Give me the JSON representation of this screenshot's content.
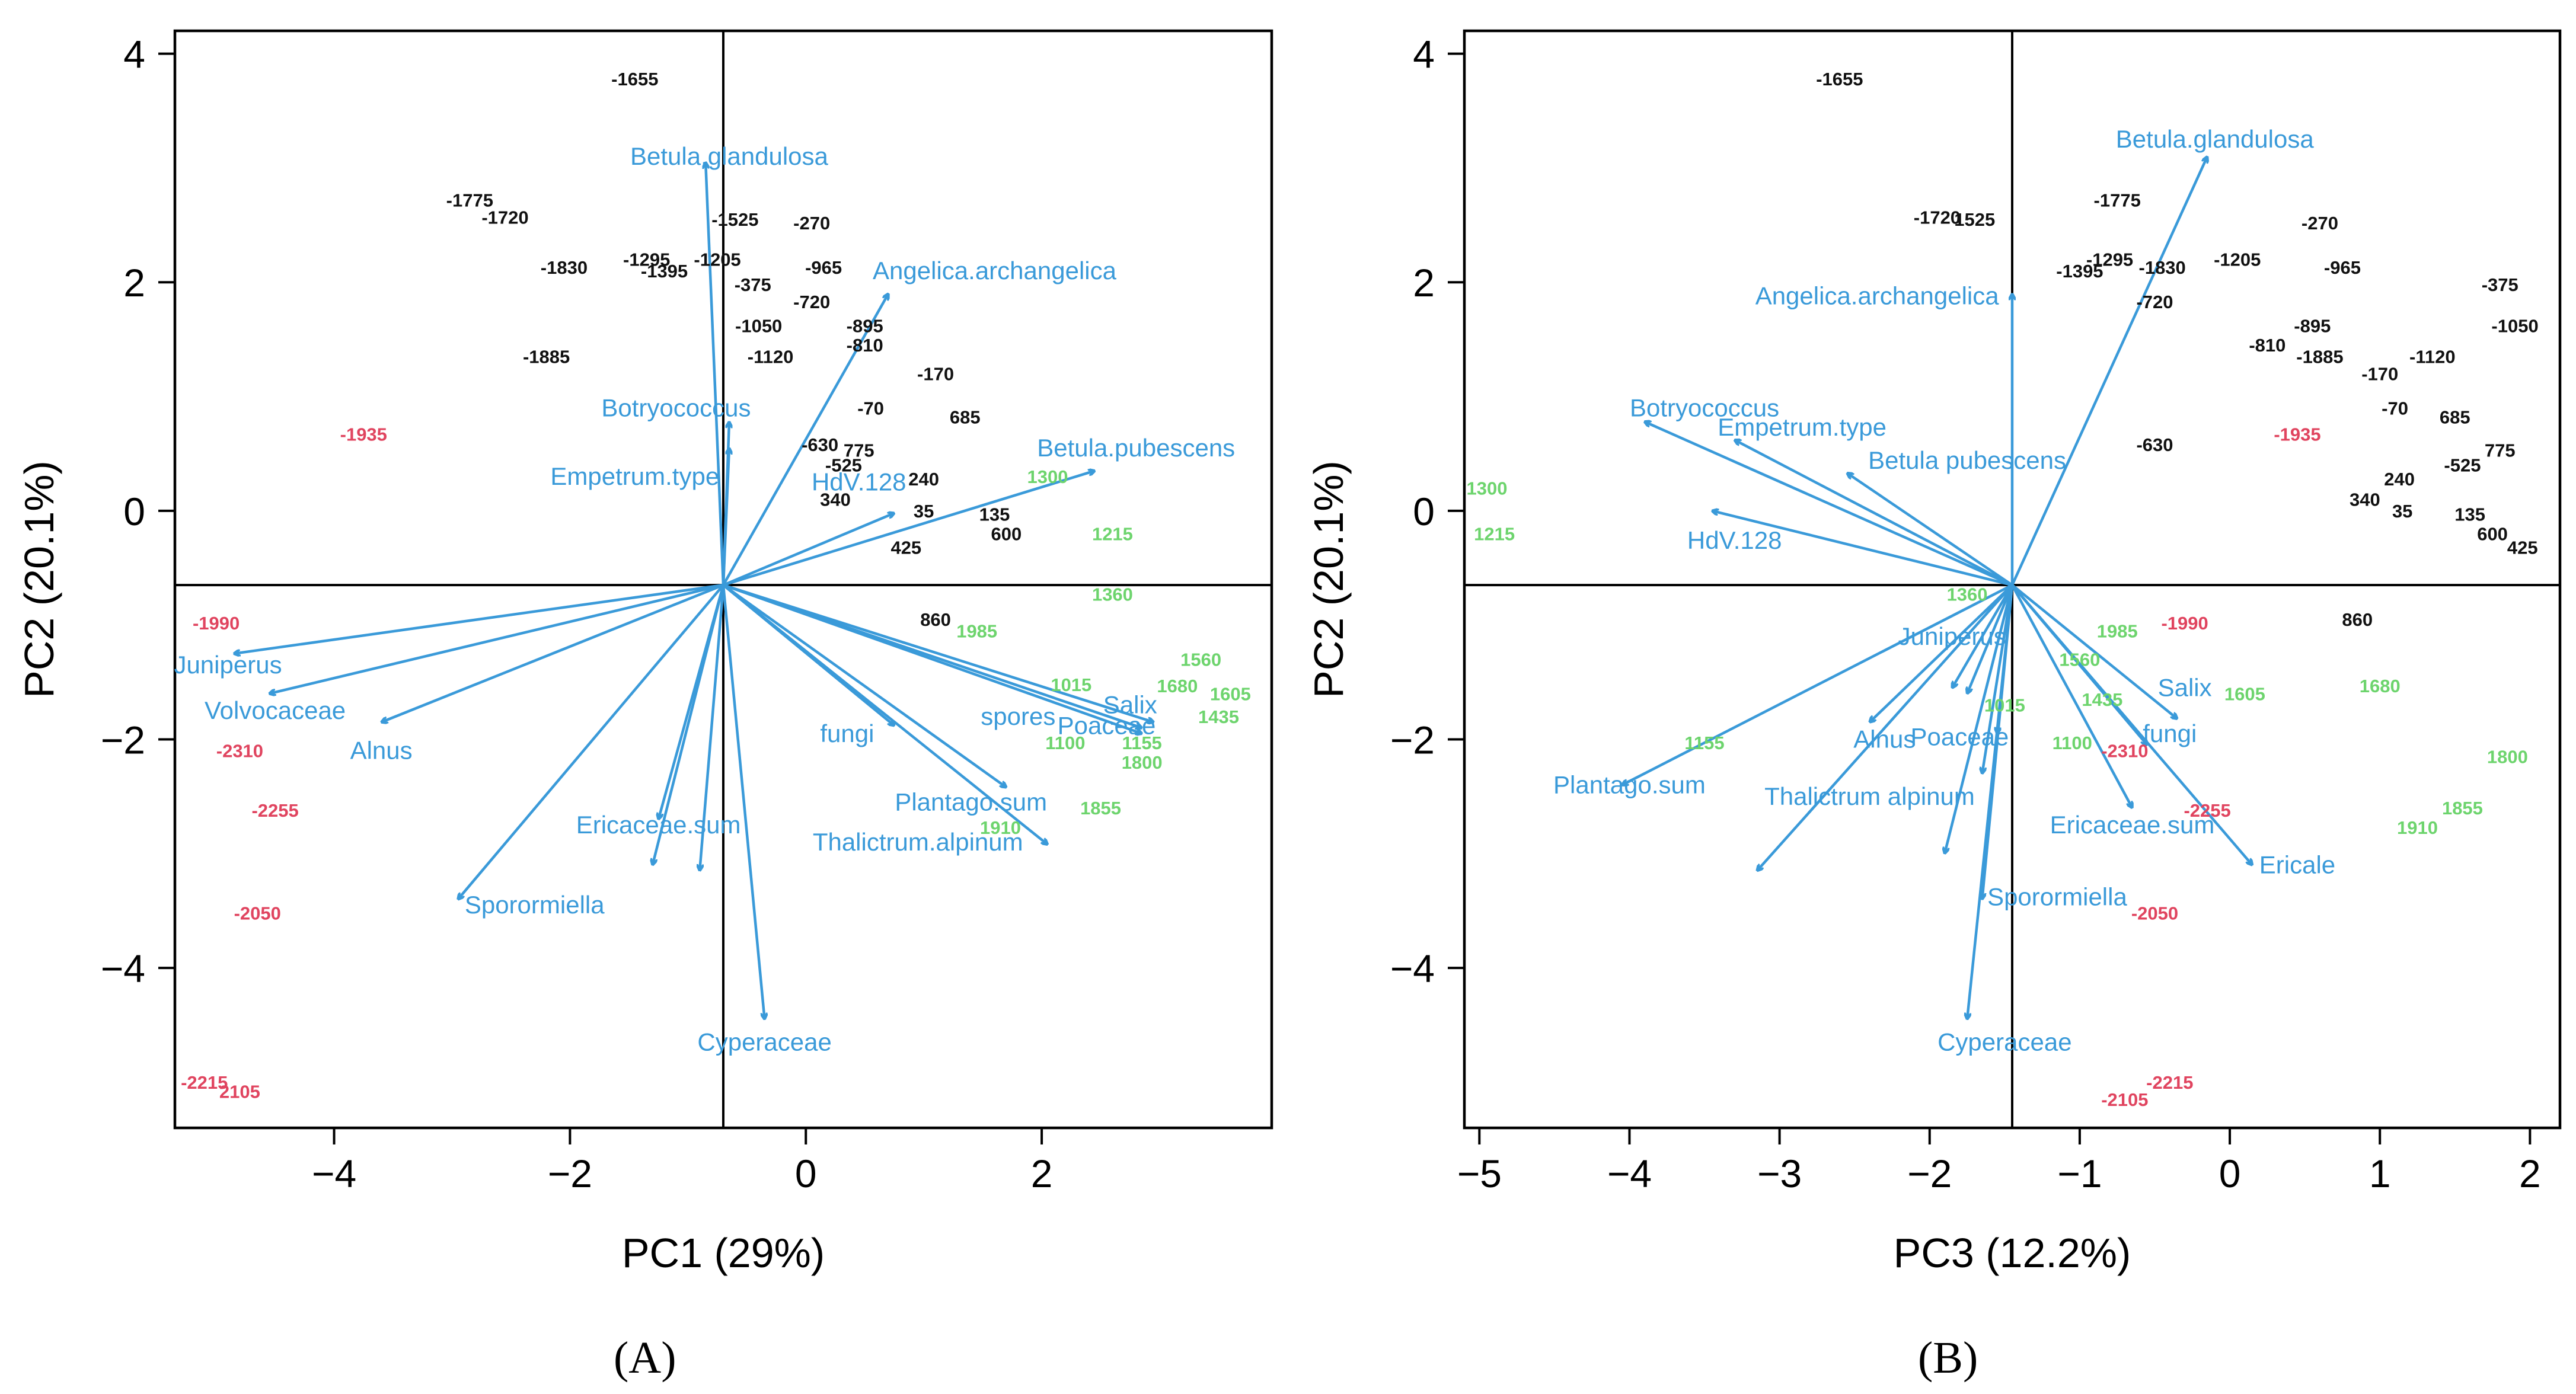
{
  "colors": {
    "arrow": "#3a9ad9",
    "late": "#111111",
    "early": "#e0445f",
    "mid": "#6dd46d",
    "axis": "#000000"
  },
  "panel_labels": [
    "(A)",
    "(B)"
  ],
  "chart_data": [
    {
      "type": "scatter",
      "subtype": "pca-biplot",
      "xlabel": "PC1 (29%)",
      "ylabel": "PC2 (20.1%)",
      "xlim": [
        -5.35,
        3.95
      ],
      "ylim": [
        -5.4,
        4.2
      ],
      "xticks": [
        -4,
        -2,
        0,
        2
      ],
      "yticks": [
        -4,
        -2,
        0,
        2,
        4
      ],
      "origin": [
        -0.7,
        -0.65
      ],
      "vectors": [
        {
          "name": "Betula.glandulosa",
          "x": -0.85,
          "y": 3.05,
          "lx": -0.65,
          "ly": 3.1
        },
        {
          "name": "Angelica.archangelica",
          "x": 0.7,
          "y": 1.9,
          "lx": 1.6,
          "ly": 2.1
        },
        {
          "name": "Botryococcus",
          "x": -0.65,
          "y": 0.78,
          "lx": -1.1,
          "ly": 0.9
        },
        {
          "name": "Empetrum.type",
          "x": -0.65,
          "y": 0.55,
          "lx": -1.45,
          "ly": 0.3
        },
        {
          "name": "HdV.128",
          "x": 0.75,
          "y": -0.02,
          "lx": 0.45,
          "ly": 0.25
        },
        {
          "name": "Betula.pubescens",
          "x": 2.45,
          "y": 0.35,
          "lx": 2.8,
          "ly": 0.55
        },
        {
          "name": "Juniperus",
          "x": -4.85,
          "y": -1.25,
          "lx": -4.9,
          "ly": -1.35
        },
        {
          "name": "Volvocaceae",
          "x": -4.55,
          "y": -1.6,
          "lx": -4.5,
          "ly": -1.75
        },
        {
          "name": "Alnus",
          "x": -3.6,
          "y": -1.85,
          "lx": -3.6,
          "ly": -2.1
        },
        {
          "name": "Sporormiella",
          "x": -2.95,
          "y": -3.4,
          "lx": -2.3,
          "ly": -3.45
        },
        {
          "name": "Ericaceae.sum",
          "x": -1.25,
          "y": -2.7,
          "lx": -1.25,
          "ly": -2.75
        },
        {
          "name": "Cyperaceae",
          "x": -0.35,
          "y": -4.45,
          "lx": -0.35,
          "ly": -4.65
        },
        {
          "name": "fungi",
          "x": 0.75,
          "y": -1.88,
          "lx": 0.35,
          "ly": -1.95
        },
        {
          "name": "spores",
          "x": 2.85,
          "y": -1.9,
          "lx": 1.8,
          "ly": -1.8
        },
        {
          "name": "Salix",
          "x": 2.95,
          "y": -1.85,
          "lx": 2.75,
          "ly": -1.7
        },
        {
          "name": "Poaceae",
          "x": 2.85,
          "y": -1.95,
          "lx": 2.55,
          "ly": -1.88
        },
        {
          "name": "Plantago.sum",
          "x": 1.7,
          "y": -2.42,
          "lx": 1.4,
          "ly": -2.55
        },
        {
          "name": "Thalictrum.alpinum",
          "x": 2.05,
          "y": -2.92,
          "lx": 0.95,
          "ly": -2.9
        },
        {
          "name": "",
          "x": -0.9,
          "y": -3.15
        },
        {
          "name": "",
          "x": -1.3,
          "y": -3.1
        }
      ],
      "samples": [
        {
          "label": "-1655",
          "x": -1.45,
          "y": 3.78,
          "g": "late"
        },
        {
          "label": "-1775",
          "x": -2.85,
          "y": 2.72,
          "g": "late"
        },
        {
          "label": "-1720",
          "x": -2.55,
          "y": 2.57,
          "g": "late"
        },
        {
          "label": "-1525",
          "x": -0.6,
          "y": 2.55,
          "g": "late"
        },
        {
          "label": "-270",
          "x": 0.05,
          "y": 2.52,
          "g": "late"
        },
        {
          "label": "-1295",
          "x": -1.35,
          "y": 2.2,
          "g": "late"
        },
        {
          "label": "-1205",
          "x": -0.75,
          "y": 2.2,
          "g": "late"
        },
        {
          "label": "-1395",
          "x": -1.2,
          "y": 2.1,
          "g": "late"
        },
        {
          "label": "-1830",
          "x": -2.05,
          "y": 2.13,
          "g": "late"
        },
        {
          "label": "-965",
          "x": 0.15,
          "y": 2.13,
          "g": "late"
        },
        {
          "label": "-375",
          "x": -0.45,
          "y": 1.98,
          "g": "late"
        },
        {
          "label": "-720",
          "x": 0.05,
          "y": 1.83,
          "g": "late"
        },
        {
          "label": "-1050",
          "x": -0.4,
          "y": 1.62,
          "g": "late"
        },
        {
          "label": "-895",
          "x": 0.5,
          "y": 1.62,
          "g": "late"
        },
        {
          "label": "-810",
          "x": 0.5,
          "y": 1.45,
          "g": "late"
        },
        {
          "label": "-1885",
          "x": -2.2,
          "y": 1.35,
          "g": "late"
        },
        {
          "label": "-1120",
          "x": -0.3,
          "y": 1.35,
          "g": "late"
        },
        {
          "label": "-170",
          "x": 1.1,
          "y": 1.2,
          "g": "late"
        },
        {
          "label": "-70",
          "x": 0.55,
          "y": 0.9,
          "g": "late"
        },
        {
          "label": "685",
          "x": 1.35,
          "y": 0.82,
          "g": "late"
        },
        {
          "label": "-630",
          "x": 0.12,
          "y": 0.58,
          "g": "late"
        },
        {
          "label": "775",
          "x": 0.45,
          "y": 0.53,
          "g": "late"
        },
        {
          "label": "-525",
          "x": 0.32,
          "y": 0.4,
          "g": "late"
        },
        {
          "label": "240",
          "x": 1.0,
          "y": 0.28,
          "g": "late"
        },
        {
          "label": "340",
          "x": 0.25,
          "y": 0.1,
          "g": "late"
        },
        {
          "label": "35",
          "x": 1.0,
          "y": 0.0,
          "g": "late"
        },
        {
          "label": "135",
          "x": 1.6,
          "y": -0.03,
          "g": "late"
        },
        {
          "label": "600",
          "x": 1.7,
          "y": -0.2,
          "g": "late"
        },
        {
          "label": "425",
          "x": 0.85,
          "y": -0.32,
          "g": "late"
        },
        {
          "label": "860",
          "x": 1.1,
          "y": -0.95,
          "g": "late"
        },
        {
          "label": "-1935",
          "x": -3.75,
          "y": 0.67,
          "g": "early"
        },
        {
          "label": "-1990",
          "x": -5.0,
          "y": -0.98,
          "g": "early"
        },
        {
          "label": "-2310",
          "x": -4.8,
          "y": -2.1,
          "g": "early"
        },
        {
          "label": "-2255",
          "x": -4.5,
          "y": -2.62,
          "g": "early"
        },
        {
          "label": "-2050",
          "x": -4.65,
          "y": -3.52,
          "g": "early"
        },
        {
          "label": "-2215",
          "x": -5.1,
          "y": -5.0,
          "g": "early"
        },
        {
          "label": "2105",
          "x": -4.8,
          "y": -5.08,
          "g": "early"
        },
        {
          "label": "1300",
          "x": 2.05,
          "y": 0.3,
          "g": "mid"
        },
        {
          "label": "1215",
          "x": 2.6,
          "y": -0.2,
          "g": "mid"
        },
        {
          "label": "1360",
          "x": 2.6,
          "y": -0.73,
          "g": "mid"
        },
        {
          "label": "1985",
          "x": 1.45,
          "y": -1.05,
          "g": "mid"
        },
        {
          "label": "1560",
          "x": 3.35,
          "y": -1.3,
          "g": "mid"
        },
        {
          "label": "1015",
          "x": 2.25,
          "y": -1.52,
          "g": "mid"
        },
        {
          "label": "1680",
          "x": 3.15,
          "y": -1.53,
          "g": "mid"
        },
        {
          "label": "1605",
          "x": 3.6,
          "y": -1.6,
          "g": "mid"
        },
        {
          "label": "1435",
          "x": 3.5,
          "y": -1.8,
          "g": "mid"
        },
        {
          "label": "1100",
          "x": 2.2,
          "y": -2.03,
          "g": "mid"
        },
        {
          "label": "1155",
          "x": 2.85,
          "y": -2.03,
          "g": "mid"
        },
        {
          "label": "1800",
          "x": 2.85,
          "y": -2.2,
          "g": "mid"
        },
        {
          "label": "1855",
          "x": 2.5,
          "y": -2.6,
          "g": "mid"
        },
        {
          "label": "1910",
          "x": 1.65,
          "y": -2.77,
          "g": "mid"
        }
      ]
    },
    {
      "type": "scatter",
      "subtype": "pca-biplot",
      "xlabel": "PC3 (12.2%)",
      "ylabel": "PC2 (20.1%)",
      "xlim": [
        -5.1,
        2.2
      ],
      "ylim": [
        -5.4,
        4.2
      ],
      "xticks": [
        -5,
        -4,
        -3,
        -2,
        -1,
        0,
        1,
        2
      ],
      "yticks": [
        -4,
        -2,
        0,
        2,
        4
      ],
      "origin": [
        -1.45,
        -0.65
      ],
      "vectors": [
        {
          "name": "Betula.glandulosa",
          "x": -0.15,
          "y": 3.1,
          "lx": -0.1,
          "ly": 3.25
        },
        {
          "name": "Angelica.archangelica",
          "x": -1.45,
          "y": 1.9,
          "lx": -2.35,
          "ly": 1.88
        },
        {
          "name": "Botryococcus",
          "x": -3.9,
          "y": 0.78,
          "lx": -3.5,
          "ly": 0.9
        },
        {
          "name": "Empetrum.type",
          "x": -3.3,
          "y": 0.62,
          "lx": -2.85,
          "ly": 0.73
        },
        {
          "name": "Betula pubescens",
          "x": -2.55,
          "y": 0.33,
          "lx": -1.75,
          "ly": 0.44
        },
        {
          "name": "HdV.128",
          "x": -3.45,
          "y": 0.0,
          "lx": -3.3,
          "ly": -0.26
        },
        {
          "name": "Juniperus",
          "x": -1.75,
          "y": -1.6,
          "lx": -1.85,
          "ly": -1.1
        },
        {
          "name": "Alnus",
          "x": -2.4,
          "y": -1.85,
          "lx": -2.3,
          "ly": -2.0
        },
        {
          "name": "Poaceae",
          "x": -1.55,
          "y": -1.95,
          "lx": -1.8,
          "ly": -1.98
        },
        {
          "name": "Plantago.sum",
          "x": -4.05,
          "y": -2.4,
          "lx": -4.0,
          "ly": -2.4
        },
        {
          "name": "Thalictrum alpinum",
          "x": -3.15,
          "y": -3.15,
          "lx": -2.4,
          "ly": -2.5
        },
        {
          "name": "Sporormiella",
          "x": -1.65,
          "y": -3.4,
          "lx": -1.15,
          "ly": -3.38
        },
        {
          "name": "Cyperaceae",
          "x": -1.75,
          "y": -4.45,
          "lx": -1.5,
          "ly": -4.65
        },
        {
          "name": "Salix",
          "x": -0.35,
          "y": -1.82,
          "lx": -0.3,
          "ly": -1.55
        },
        {
          "name": "fungi",
          "x": -0.55,
          "y": -2.05,
          "lx": -0.4,
          "ly": -1.95
        },
        {
          "name": "Ericaceae.sum",
          "x": -0.65,
          "y": -2.6,
          "lx": -0.65,
          "ly": -2.75
        },
        {
          "name": "Ericale",
          "x": 0.15,
          "y": -3.1,
          "lx": 0.45,
          "ly": -3.1
        },
        {
          "name": "",
          "x": -1.9,
          "y": -3.0
        },
        {
          "name": "",
          "x": -1.65,
          "y": -2.3
        },
        {
          "name": "",
          "x": -1.85,
          "y": -1.55
        }
      ],
      "samples": [
        {
          "label": "-1655",
          "x": -2.6,
          "y": 3.78,
          "g": "late"
        },
        {
          "label": "-1720",
          "x": -1.95,
          "y": 2.57,
          "g": "late"
        },
        {
          "label": "1525",
          "x": -1.7,
          "y": 2.55,
          "g": "late"
        },
        {
          "label": "-1775",
          "x": -0.75,
          "y": 2.72,
          "g": "late"
        },
        {
          "label": "-270",
          "x": 0.6,
          "y": 2.52,
          "g": "late"
        },
        {
          "label": "-1295",
          "x": -0.8,
          "y": 2.2,
          "g": "late"
        },
        {
          "label": "-1395",
          "x": -1.0,
          "y": 2.1,
          "g": "late"
        },
        {
          "label": "-1830",
          "x": -0.45,
          "y": 2.13,
          "g": "late"
        },
        {
          "label": "-1205",
          "x": 0.05,
          "y": 2.2,
          "g": "late"
        },
        {
          "label": "-965",
          "x": 0.75,
          "y": 2.13,
          "g": "late"
        },
        {
          "label": "-720",
          "x": -0.5,
          "y": 1.83,
          "g": "late"
        },
        {
          "label": "-375",
          "x": 1.8,
          "y": 1.98,
          "g": "late"
        },
        {
          "label": "-1050",
          "x": 1.9,
          "y": 1.62,
          "g": "late"
        },
        {
          "label": "-895",
          "x": 0.55,
          "y": 1.62,
          "g": "late"
        },
        {
          "label": "-810",
          "x": 0.25,
          "y": 1.45,
          "g": "late"
        },
        {
          "label": "-1885",
          "x": 0.6,
          "y": 1.35,
          "g": "late"
        },
        {
          "label": "-1120",
          "x": 1.35,
          "y": 1.35,
          "g": "late"
        },
        {
          "label": "-170",
          "x": 1.0,
          "y": 1.2,
          "g": "late"
        },
        {
          "label": "-70",
          "x": 1.1,
          "y": 0.9,
          "g": "late"
        },
        {
          "label": "685",
          "x": 1.5,
          "y": 0.82,
          "g": "late"
        },
        {
          "label": "-630",
          "x": -0.5,
          "y": 0.58,
          "g": "late"
        },
        {
          "label": "775",
          "x": 1.8,
          "y": 0.53,
          "g": "late"
        },
        {
          "label": "-525",
          "x": 1.55,
          "y": 0.4,
          "g": "late"
        },
        {
          "label": "240",
          "x": 1.13,
          "y": 0.28,
          "g": "late"
        },
        {
          "label": "340",
          "x": 0.9,
          "y": 0.1,
          "g": "late"
        },
        {
          "label": "35",
          "x": 1.15,
          "y": 0.0,
          "g": "late"
        },
        {
          "label": "135",
          "x": 1.6,
          "y": -0.03,
          "g": "late"
        },
        {
          "label": "600",
          "x": 1.75,
          "y": -0.2,
          "g": "late"
        },
        {
          "label": "425",
          "x": 1.95,
          "y": -0.32,
          "g": "late"
        },
        {
          "label": "860",
          "x": 0.85,
          "y": -0.95,
          "g": "late"
        },
        {
          "label": "-1935",
          "x": 0.45,
          "y": 0.67,
          "g": "early"
        },
        {
          "label": "-1990",
          "x": -0.3,
          "y": -0.98,
          "g": "early"
        },
        {
          "label": "-2310",
          "x": -0.7,
          "y": -2.1,
          "g": "early"
        },
        {
          "label": "-2255",
          "x": -0.15,
          "y": -2.62,
          "g": "early"
        },
        {
          "label": "-2050",
          "x": -0.5,
          "y": -3.52,
          "g": "early"
        },
        {
          "label": "-2215",
          "x": -0.4,
          "y": -5.0,
          "g": "early"
        },
        {
          "label": "-2105",
          "x": -0.7,
          "y": -5.15,
          "g": "early"
        },
        {
          "label": "1300",
          "x": -4.95,
          "y": 0.2,
          "g": "mid"
        },
        {
          "label": "1215",
          "x": -4.9,
          "y": -0.2,
          "g": "mid"
        },
        {
          "label": "1360",
          "x": -1.75,
          "y": -0.73,
          "g": "mid"
        },
        {
          "label": "1985",
          "x": -0.75,
          "y": -1.05,
          "g": "mid"
        },
        {
          "label": "1560",
          "x": -1.0,
          "y": -1.3,
          "g": "mid"
        },
        {
          "label": "1435",
          "x": -0.85,
          "y": -1.65,
          "g": "mid"
        },
        {
          "label": "1015",
          "x": -1.5,
          "y": -1.7,
          "g": "mid"
        },
        {
          "label": "1605",
          "x": 0.1,
          "y": -1.6,
          "g": "mid"
        },
        {
          "label": "1680",
          "x": 1.0,
          "y": -1.53,
          "g": "mid"
        },
        {
          "label": "1155",
          "x": -3.5,
          "y": -2.03,
          "g": "mid"
        },
        {
          "label": "1100",
          "x": -1.05,
          "y": -2.03,
          "g": "mid"
        },
        {
          "label": "1800",
          "x": 1.85,
          "y": -2.15,
          "g": "mid"
        },
        {
          "label": "1855",
          "x": 1.55,
          "y": -2.6,
          "g": "mid"
        },
        {
          "label": "1910",
          "x": 1.25,
          "y": -2.77,
          "g": "mid"
        }
      ]
    }
  ]
}
